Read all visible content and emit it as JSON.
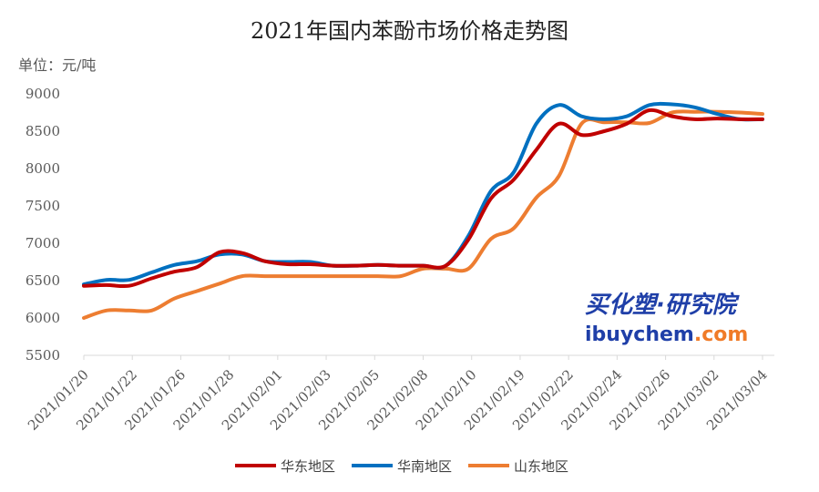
{
  "chart_data": {
    "type": "line",
    "title": "2021年国内苯酚市场价格走势图",
    "unit_label": "单位：元/吨",
    "xlabel": "",
    "ylabel": "",
    "ylim": [
      5500,
      9000
    ],
    "yticks": [
      5500,
      6000,
      6500,
      7000,
      7500,
      8000,
      8500,
      9000
    ],
    "grid": false,
    "legend_position": "bottom",
    "categories": [
      "2021/01/20",
      "2021/01/22",
      "2021/01/26",
      "2021/01/28",
      "2021/02/01",
      "2021/02/03",
      "2021/02/05",
      "2021/02/08",
      "2021/02/10",
      "2021/02/19",
      "2021/02/22",
      "2021/02/24",
      "2021/02/26",
      "2021/03/02",
      "2021/03/04"
    ],
    "x": [
      0,
      1,
      2,
      3,
      4,
      5,
      6,
      7,
      8,
      9,
      10,
      11,
      12,
      13,
      14,
      15,
      16,
      17,
      18,
      19,
      20,
      21,
      22,
      23,
      24,
      25,
      26,
      27,
      28,
      29,
      30
    ],
    "series": [
      {
        "name": "华东地区",
        "color": "#c00000",
        "values": [
          6430,
          6440,
          6430,
          6530,
          6620,
          6680,
          6880,
          6870,
          6760,
          6720,
          6720,
          6700,
          6700,
          6710,
          6700,
          6700,
          6700,
          7050,
          7600,
          7850,
          8250,
          8600,
          8450,
          8500,
          8600,
          8780,
          8700,
          8660,
          8670,
          8660,
          8660
        ]
      },
      {
        "name": "华南地区",
        "color": "#0070c0",
        "values": [
          6450,
          6510,
          6510,
          6610,
          6710,
          6760,
          6850,
          6850,
          6760,
          6750,
          6750,
          6700,
          6700,
          6710,
          6700,
          6700,
          6700,
          7100,
          7700,
          7950,
          8600,
          8850,
          8700,
          8660,
          8700,
          8850,
          8860,
          8820,
          8730,
          8660,
          8660
        ]
      },
      {
        "name": "山东地区",
        "color": "#ed7d31",
        "values": [
          6000,
          6100,
          6100,
          6100,
          6260,
          6360,
          6460,
          6560,
          6560,
          6560,
          6560,
          6560,
          6560,
          6560,
          6560,
          6660,
          6660,
          6660,
          7060,
          7200,
          7610,
          7900,
          8600,
          8620,
          8620,
          8610,
          8750,
          8760,
          8760,
          8750,
          8730
        ]
      }
    ]
  },
  "watermark": {
    "line1": "买化塑·研究院",
    "line2_prefix": "ibuychem",
    "line2_suffix": ".com",
    "color_dark": "#1f3fa8",
    "color_accent": "#f07b28"
  }
}
